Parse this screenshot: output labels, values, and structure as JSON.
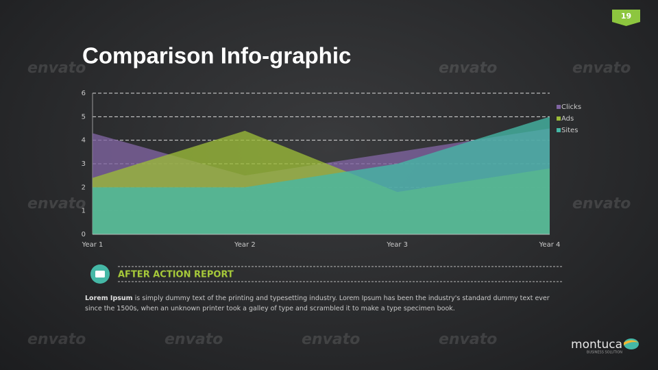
{
  "slide": {
    "page_number": "19",
    "title": "Comparison Info-graphic",
    "section_heading": "AFTER ACTION REPORT",
    "body_lead": "Lorem Ipsum",
    "body_text": " is simply dummy text of the printing and typesetting industry. Lorem Ipsum has been the industry's standard dummy text ever since the 1500s, when an unknown printer took a galley of type and scrambled it to make a type specimen book.",
    "logo": "montuca",
    "logo_tagline": "BUSINESS SOLUTION",
    "watermark": "envato"
  },
  "chart_data": {
    "type": "area",
    "categories": [
      "Year 1",
      "Year 2",
      "Year 3",
      "Year 4"
    ],
    "series": [
      {
        "name": "Clicks",
        "color": "#8064a2",
        "values": [
          4.3,
          2.5,
          3.5,
          4.5
        ]
      },
      {
        "name": "Ads",
        "color": "#9bbb38",
        "values": [
          2.4,
          4.4,
          1.8,
          2.8
        ]
      },
      {
        "name": "Sites",
        "color": "#45b8a6",
        "values": [
          2,
          2,
          3,
          5
        ]
      }
    ],
    "ylim": [
      0,
      6
    ],
    "yticks": [
      0,
      1,
      2,
      3,
      4,
      5,
      6
    ],
    "grid": true,
    "legend": "right"
  }
}
